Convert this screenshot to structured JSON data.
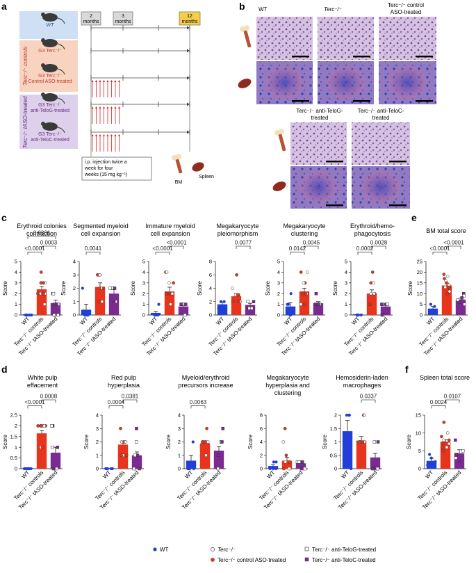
{
  "panel_labels": {
    "a": "a",
    "b": "b",
    "c": "c",
    "d": "d",
    "e": "e",
    "f": "f"
  },
  "colors": {
    "wt": "#1f3fd6",
    "controls": "#e8341c",
    "taso": "#7b2a91",
    "pval": "#222222"
  },
  "timeline": {
    "months": [
      "2\nmonths",
      "3\nmonths",
      "12\nmonths"
    ],
    "month_2": "2",
    "month_3": "3",
    "month_12": "12",
    "months_word": "months",
    "side_controls": "Terc⁻/⁻ controls",
    "side_taso": "Terc⁻/⁻ tASO-treated",
    "rows": [
      {
        "l1": "WT",
        "l2": ""
      },
      {
        "l1": "G3 Terc⁻/⁻",
        "l2": ""
      },
      {
        "l1": "G3 Terc⁻/⁻",
        "l2": "Control ASO-treated"
      },
      {
        "l1": "G3 Terc⁻/⁻",
        "l2": "anti-TeloG-treated"
      },
      {
        "l1": "G3 Terc⁻/⁻",
        "l2": "anti-TeloC-treated"
      }
    ],
    "injection_note_1": "i.p. injection twice a",
    "injection_note_2": "week for four",
    "injection_note_3": "weeks (15 mg kg⁻¹)",
    "bm": "BM",
    "spleen": "Spleen"
  },
  "histology": {
    "top_labels": [
      "WT",
      "Terc⁻/⁻",
      "Terc⁻/⁻ control",
      "ASO-treated"
    ],
    "bottom_labels": [
      "Terc⁻/⁻ anti-TeloG-",
      "treated",
      "Terc⁻/⁻ anti-TeloC-",
      "treated"
    ]
  },
  "legend": {
    "wt": "WT",
    "terc": "Terc⁻/⁻",
    "control_aso": "Terc⁻/⁻ control ASO-treated",
    "telog": "Terc⁻/⁻ anti-TeloG-treated",
    "teloc": "Terc⁻/⁻ anti-TeloC-treated"
  },
  "chart_data": [
    {
      "type": "bar",
      "id": "c1",
      "title": [
        "Erythroid colonies",
        "contraction"
      ],
      "ylabel": "Score",
      "ylim": [
        0,
        5
      ],
      "yticks": [
        0,
        1,
        2,
        3,
        4,
        5
      ],
      "categories": [
        "WT",
        "Terc⁻/⁻ controls",
        "Terc⁻/⁻ tASO-treated"
      ],
      "values": [
        0.0,
        2.4,
        1.1
      ],
      "errors": [
        0,
        0.25,
        0.3
      ],
      "points": [
        [
          0,
          0,
          0,
          0,
          0,
          0
        ],
        [
          4,
          3,
          3,
          3,
          3,
          2,
          2,
          2,
          2,
          2,
          2,
          1
        ],
        [
          2,
          2,
          1,
          1,
          1,
          0,
          0,
          0
        ]
      ],
      "brackets": [
        {
          "from": 0,
          "to": 1,
          "label": "<0.0001"
        },
        {
          "from": 1,
          "to": 2,
          "label": "0.0003"
        },
        {
          "from": 0,
          "to": 2,
          "label": "0.0301"
        }
      ]
    },
    {
      "type": "bar",
      "id": "c2",
      "title": [
        "Segmented myeloid",
        "cell expansion"
      ],
      "ylabel": "Score",
      "ylim": [
        0,
        4
      ],
      "yticks": [
        0,
        1,
        2,
        3,
        4
      ],
      "categories": [
        "WT",
        "Terc⁻/⁻ controls",
        "Terc⁻/⁻ tASO-treated"
      ],
      "values": [
        0.4,
        2.1,
        1.6
      ],
      "errors": [
        0.4,
        0.3,
        0.3
      ],
      "points": [
        [
          2,
          0,
          0,
          0,
          0
        ],
        [
          3,
          3,
          3,
          3,
          2,
          2,
          2,
          1,
          1
        ],
        [
          2,
          2,
          2,
          2,
          1,
          1,
          1
        ]
      ],
      "brackets": [
        {
          "from": 0,
          "to": 1,
          "label": "0.0041"
        }
      ]
    },
    {
      "type": "bar",
      "id": "c3",
      "title": [
        "Immature myeloid",
        "cell expansion"
      ],
      "ylabel": "Score",
      "ylim": [
        0,
        5
      ],
      "yticks": [
        0,
        1,
        2,
        3,
        4,
        5
      ],
      "categories": [
        "WT",
        "Terc⁻/⁻ controls",
        "Terc⁻/⁻ tASO-treated"
      ],
      "values": [
        0.2,
        2.2,
        0.8
      ],
      "errors": [
        0.15,
        0.4,
        0.15
      ],
      "points": [
        [
          1,
          0,
          0,
          0,
          0
        ],
        [
          4,
          4,
          3,
          3,
          2,
          2,
          2,
          2,
          2,
          1
        ],
        [
          1,
          1,
          1,
          1,
          1,
          0
        ]
      ],
      "brackets": [
        {
          "from": 0,
          "to": 1,
          "label": "<0.0001"
        },
        {
          "from": 1,
          "to": 2,
          "label": "<0.0001"
        }
      ]
    },
    {
      "type": "bar",
      "id": "c4",
      "title": [
        "Megakaryocyte",
        "pleiomorphism"
      ],
      "ylabel": "Score",
      "ylim": [
        0,
        8
      ],
      "yticks": [
        0,
        2,
        4,
        6,
        8
      ],
      "categories": [
        "WT",
        "Terc⁻/⁻ controls",
        "Terc⁻/⁻ tASO-treated"
      ],
      "values": [
        1.6,
        2.8,
        1.5
      ],
      "errors": [
        0.3,
        0.4,
        0.25
      ],
      "points": [
        [
          2,
          2,
          1,
          1,
          1
        ],
        [
          6,
          4,
          3,
          3,
          3,
          2,
          2,
          2,
          2
        ],
        [
          2,
          2,
          1,
          1,
          1,
          1
        ]
      ],
      "brackets": [
        {
          "from": 1,
          "to": 2,
          "label": "0.0077"
        }
      ]
    },
    {
      "type": "bar",
      "id": "c5",
      "title": [
        "Megakaryocyte",
        "clustering"
      ],
      "ylabel": "Score",
      "ylim": [
        0,
        5
      ],
      "yticks": [
        0,
        1,
        2,
        3,
        4,
        5
      ],
      "categories": [
        "WT",
        "Terc⁻/⁻ controls",
        "Terc⁻/⁻ tASO-treated"
      ],
      "values": [
        0.8,
        2.2,
        1.1
      ],
      "errors": [
        0.35,
        0.3,
        0.15
      ],
      "points": [
        [
          2,
          1,
          1,
          0,
          0
        ],
        [
          4,
          4,
          3,
          3,
          2,
          2,
          2,
          1,
          1
        ],
        [
          2,
          1,
          1,
          1,
          1
        ]
      ],
      "brackets": [
        {
          "from": 0,
          "to": 1,
          "label": "0.0142"
        },
        {
          "from": 1,
          "to": 2,
          "label": "0.0045"
        }
      ]
    },
    {
      "type": "bar",
      "id": "c6",
      "title": [
        "Erythroid/hemo-",
        "phagocytosis"
      ],
      "ylabel": "Score",
      "ylim": [
        0,
        5
      ],
      "yticks": [
        0,
        1,
        2,
        3,
        4,
        5
      ],
      "categories": [
        "WT",
        "Terc⁻/⁻ controls",
        "Terc⁻/⁻ tASO-treated"
      ],
      "values": [
        0.0,
        2.0,
        0.8
      ],
      "errors": [
        0,
        0.35,
        0.2
      ],
      "points": [
        [
          0,
          0,
          0,
          0,
          0
        ],
        [
          4,
          3,
          3,
          2,
          2,
          2,
          1,
          1,
          1
        ],
        [
          1,
          1,
          1,
          1,
          0
        ]
      ],
      "brackets": [
        {
          "from": 0,
          "to": 1,
          "label": "0.0002"
        },
        {
          "from": 1,
          "to": 2,
          "label": "0.0028"
        }
      ]
    },
    {
      "type": "bar",
      "id": "e1",
      "title": [
        "BM total score",
        ""
      ],
      "ylabel": "Score",
      "ylim": [
        0,
        25
      ],
      "yticks": [
        0,
        5,
        10,
        15,
        20,
        25
      ],
      "categories": [
        "WT",
        "Terc⁻/⁻ controls",
        "Terc⁻/⁻ tASO-treated"
      ],
      "values": [
        3.0,
        13.8,
        7.2
      ],
      "errors": [
        1.0,
        1.1,
        0.8
      ],
      "points": [
        [
          5,
          4,
          2,
          2,
          1
        ],
        [
          19,
          18,
          17,
          16,
          15,
          14,
          13,
          13,
          12,
          11,
          10
        ],
        [
          10,
          9,
          8,
          7,
          6,
          5
        ]
      ],
      "brackets": [
        {
          "from": 0,
          "to": 1,
          "label": "<0.0001"
        },
        {
          "from": 1,
          "to": 2,
          "label": "<0.0001"
        }
      ]
    },
    {
      "type": "bar",
      "id": "d1",
      "title": [
        "White pulp",
        "effacement"
      ],
      "ylabel": "Score",
      "ylim": [
        0,
        2.5
      ],
      "yticks": [
        0,
        0.5,
        1,
        1.5,
        2,
        2.5
      ],
      "categories": [
        "WT",
        "Terc⁻/⁻ controls",
        "Terc⁻/⁻ tASO-treated"
      ],
      "values": [
        0.0,
        1.65,
        0.75
      ],
      "errors": [
        0,
        0.12,
        0.25
      ],
      "points": [
        [
          0,
          0,
          0,
          0,
          0
        ],
        [
          2,
          2,
          2,
          2,
          2,
          2,
          2,
          1,
          1
        ],
        [
          2,
          2,
          1,
          1,
          0,
          0
        ]
      ],
      "brackets": [
        {
          "from": 0,
          "to": 1,
          "label": "<0.0001"
        },
        {
          "from": 1,
          "to": 2,
          "label": "0.0008"
        }
      ]
    },
    {
      "type": "bar",
      "id": "d2",
      "title": [
        "Red pulp",
        "hyperplasia"
      ],
      "ylabel": "Score",
      "ylim": [
        0,
        4
      ],
      "yticks": [
        0,
        1,
        2,
        3,
        4
      ],
      "categories": [
        "WT",
        "Terc⁻/⁻ controls",
        "Terc⁻/⁻ tASO-treated"
      ],
      "values": [
        0.0,
        1.8,
        1.0
      ],
      "errors": [
        0,
        0.2,
        0.25
      ],
      "points": [
        [
          0,
          0,
          0,
          0,
          0
        ],
        [
          3,
          2,
          2,
          2,
          2,
          2,
          1,
          1,
          1
        ],
        [
          3,
          2,
          1,
          1,
          0,
          0
        ]
      ],
      "brackets": [
        {
          "from": 0,
          "to": 1,
          "label": "0.0004"
        },
        {
          "from": 1,
          "to": 2,
          "label": "0.0381"
        }
      ]
    },
    {
      "type": "bar",
      "id": "d3",
      "title": [
        "Myeloid/erythroid",
        "precursors increase"
      ],
      "ylabel": "Score",
      "ylim": [
        0,
        4
      ],
      "yticks": [
        0,
        1,
        2,
        3,
        4
      ],
      "categories": [
        "WT",
        "Terc⁻/⁻ controls",
        "Terc⁻/⁻ tASO-treated"
      ],
      "values": [
        0.6,
        1.9,
        1.35
      ],
      "errors": [
        0.4,
        0.15,
        0.3
      ],
      "points": [
        [
          2,
          0,
          0,
          0,
          0
        ],
        [
          3,
          2,
          2,
          2,
          2,
          2,
          2,
          1
        ],
        [
          3,
          2,
          2,
          1,
          1,
          0
        ]
      ],
      "brackets": [
        {
          "from": 0,
          "to": 1,
          "label": "0.0063"
        }
      ]
    },
    {
      "type": "bar",
      "id": "d4",
      "title": [
        "Megakaryocyte",
        "hyperplasia and",
        "clustering"
      ],
      "ylabel": "Score",
      "ylim": [
        0,
        8
      ],
      "yticks": [
        0,
        2,
        4,
        6,
        8
      ],
      "categories": [
        "WT",
        "Terc⁻/⁻ controls",
        "Terc⁻/⁻ tASO-treated"
      ],
      "values": [
        0.4,
        1.2,
        0.8
      ],
      "errors": [
        0.2,
        0.5,
        0.2
      ],
      "points": [
        [
          1,
          1,
          0,
          0,
          0
        ],
        [
          6,
          4,
          2,
          1,
          1,
          0,
          0,
          0
        ],
        [
          1,
          1,
          1,
          1,
          0,
          0
        ]
      ],
      "brackets": []
    },
    {
      "type": "bar",
      "id": "d5",
      "title": [
        "Hemosiderin-laden",
        "macrophages",
        ""
      ],
      "ylabel": "Score",
      "ylim": [
        0,
        2.0
      ],
      "yticks": [
        0,
        0.5,
        1,
        1.5,
        2
      ],
      "categories": [
        "WT",
        "Terc⁻/⁻ controls",
        "Terc⁻/⁻ tASO-treated"
      ],
      "values": [
        1.4,
        1.05,
        0.42
      ],
      "errors": [
        0.4,
        0.15,
        0.15
      ],
      "points": [
        [
          2,
          2,
          2,
          1,
          0
        ],
        [
          2,
          2,
          1,
          1,
          1,
          1,
          1
        ],
        [
          1,
          1,
          0,
          0,
          0,
          0
        ]
      ],
      "brackets": [
        {
          "from": 1,
          "to": 2,
          "label": "0.0337"
        }
      ]
    },
    {
      "type": "bar",
      "id": "f1",
      "title": [
        "Spleen total score",
        ""
      ],
      "ylabel": "Score",
      "ylim": [
        0,
        15
      ],
      "yticks": [
        0,
        5,
        10,
        15
      ],
      "categories": [
        "WT",
        "Terc⁻/⁻ controls",
        "Terc⁻/⁻ tASO-treated"
      ],
      "values": [
        2.2,
        7.6,
        4.3
      ],
      "errors": [
        0.7,
        0.5,
        1.0
      ],
      "points": [
        [
          4,
          3,
          2,
          1,
          1
        ],
        [
          13,
          10,
          9,
          8,
          8,
          7,
          7,
          7,
          6,
          6,
          5
        ],
        [
          8,
          5,
          4,
          3,
          2
        ]
      ],
      "brackets": [
        {
          "from": 0,
          "to": 1,
          "label": "0.0024"
        },
        {
          "from": 1,
          "to": 2,
          "label": "0.0107"
        }
      ]
    }
  ]
}
